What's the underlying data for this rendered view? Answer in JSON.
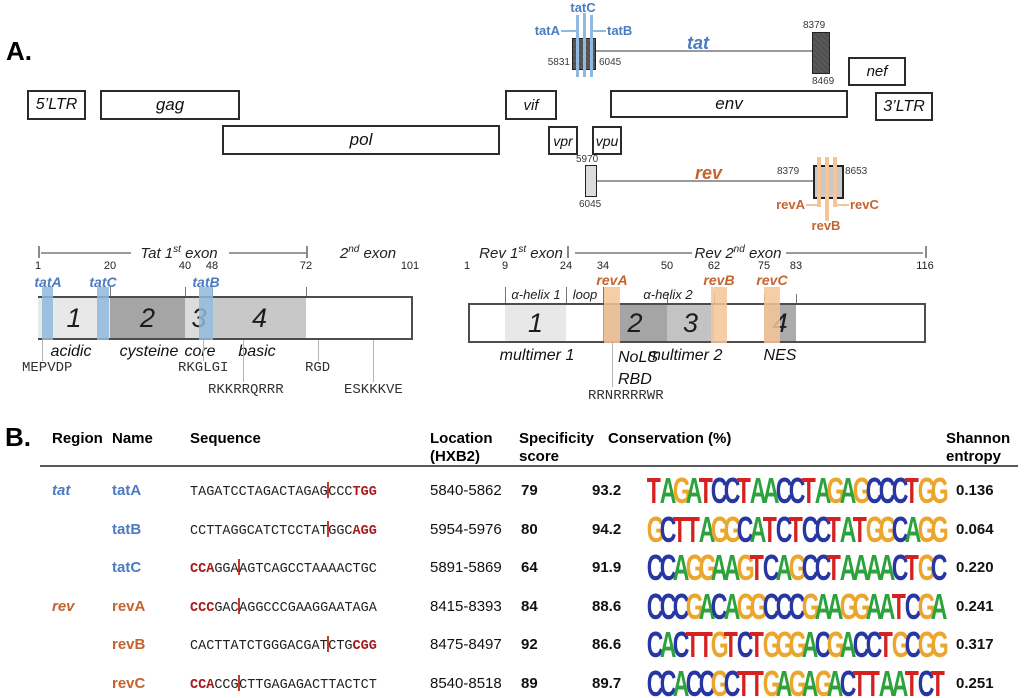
{
  "figure": {
    "panel_a_label": "A.",
    "panel_b_label": "B."
  },
  "colors": {
    "tat_blue": "#4b7cc0",
    "blue_band": "#8fb9dd",
    "rev_orange": "#c4632e",
    "orange_band": "#f5c497",
    "pam_red": "#a6191c",
    "cut_red": "#c53a2a",
    "logo_A": "#2ba23c",
    "logo_C": "#2736a0",
    "logo_G": "#eba62d",
    "logo_T": "#d52221"
  },
  "genome": {
    "genes": [
      {
        "id": "ltr5",
        "label": "5’LTR"
      },
      {
        "id": "gag",
        "label": "gag"
      },
      {
        "id": "pol",
        "label": "pol"
      },
      {
        "id": "vif",
        "label": "vif"
      },
      {
        "id": "vpr",
        "label": "vpr"
      },
      {
        "id": "vpu",
        "label": "vpu"
      },
      {
        "id": "env",
        "label": "env"
      },
      {
        "id": "nef",
        "label": "nef"
      },
      {
        "id": "ltr3",
        "label": "3’LTR"
      }
    ]
  },
  "tat_track": {
    "gene": "tat",
    "guides": [
      "tatA",
      "tatC",
      "tatB"
    ],
    "exon1_start": "5831",
    "exon1_end": "6045",
    "exon2_start": "8379",
    "exon2_end": "8469"
  },
  "rev_track": {
    "gene": "rev",
    "guides": [
      "revA",
      "revB",
      "revC"
    ],
    "exon1_start": "5970",
    "exon1_end": "6045",
    "exon2_start": "8379",
    "exon2_end": "8653"
  },
  "tat_domain": {
    "exon1_label": {
      "pre": "Tat 1",
      "sup": "st",
      "post": " exon"
    },
    "exon2_label": {
      "pre": "2",
      "sup": "nd",
      "post": " exon"
    },
    "ticks": [
      "1",
      "20",
      "40",
      "48",
      "72",
      "101"
    ],
    "guides": [
      "tatA",
      "tatC",
      "tatB"
    ],
    "segments": [
      "1",
      "2",
      "3",
      "4"
    ],
    "regions": [
      "acidic",
      "cysteine",
      "core",
      "basic"
    ],
    "motifs": [
      "MEPVDP",
      "RKGLGI",
      "RKKRRQRRR",
      "RGD",
      "ESKKKVE"
    ]
  },
  "rev_domain": {
    "exon1_label": {
      "pre": "Rev 1",
      "sup": "st",
      "post": " exon"
    },
    "exon2_label": {
      "pre": "Rev 2",
      "sup": "nd",
      "post": " exon"
    },
    "ticks": [
      "1",
      "9",
      "24",
      "34",
      "50",
      "62",
      "75",
      "83",
      "116"
    ],
    "guides": [
      "revA",
      "revB",
      "revC"
    ],
    "structure_labels": [
      "α-helix 1",
      "loop",
      "α-helix 2"
    ],
    "segments": [
      "1",
      "2",
      "3",
      "4"
    ],
    "regions": [
      "multimer 1",
      "NoLS",
      "RBD",
      "multimer 2",
      "NES"
    ],
    "motifs": [
      "RRNRRRRWR"
    ]
  },
  "table": {
    "headers": {
      "region": "Region",
      "name": "Name",
      "sequence": "Sequence",
      "location": [
        "Location",
        "(HXB2)"
      ],
      "specificity": [
        "Specificity",
        "score"
      ],
      "conservation": "Conservation (%)",
      "entropy": [
        "Shannon",
        "entropy"
      ]
    },
    "rows": [
      {
        "region": "tat",
        "group": "tat",
        "name": "tatA",
        "seq": [
          {
            "t": "TAGATCCTAGACTAGAG"
          },
          {
            "cut": true
          },
          {
            "t": "CCC"
          },
          {
            "t": "TGG",
            "pam": true
          }
        ],
        "location": "5840-5862",
        "specificity": "79",
        "conservation": "93.2",
        "logo": "TAGATCCTAACCTAGAGCCCTGG",
        "entropy": "0.136"
      },
      {
        "region": "",
        "group": "tat",
        "name": "tatB",
        "seq": [
          {
            "t": "CCTTAGGCATCTCCTAT"
          },
          {
            "cut": true
          },
          {
            "t": "GGC"
          },
          {
            "t": "AGG",
            "pam": true
          }
        ],
        "location": "5954-5976",
        "specificity": "80",
        "conservation": "94.2",
        "logo": "GCTTAGGCATCTCCTATGGCAGG",
        "entropy": "0.064"
      },
      {
        "region": "",
        "group": "tat",
        "name": "tatC",
        "seq": [
          {
            "t": "CCA",
            "pam": true
          },
          {
            "t": "GGA"
          },
          {
            "cut": true
          },
          {
            "t": "AGTCAGCCTAAAACTGC"
          }
        ],
        "location": "5891-5869",
        "specificity": "64",
        "conservation": "91.9",
        "logo": "CCAGGAAGTCAGCCTAAAACTGC",
        "entropy": "0.220"
      },
      {
        "region": "rev",
        "group": "rev",
        "name": "revA",
        "seq": [
          {
            "t": "CCC",
            "pam": true
          },
          {
            "t": "GAC"
          },
          {
            "cut": true
          },
          {
            "t": "AGGCCCGAAGGAATAGA"
          }
        ],
        "location": "8415-8393",
        "specificity": "84",
        "conservation": "88.6",
        "logo": "CCCGACAGGCCCGAAGGAATCGA",
        "entropy": "0.241"
      },
      {
        "region": "",
        "group": "rev",
        "name": "revB",
        "seq": [
          {
            "t": "CACTTATCTGGGACGAT"
          },
          {
            "cut": true
          },
          {
            "t": "CTG"
          },
          {
            "t": "CGG",
            "pam": true
          }
        ],
        "location": "8475-8497",
        "specificity": "92",
        "conservation": "86.6",
        "logo": "CACTTGTCTGGGACGACCTGCGG",
        "entropy": "0.317"
      },
      {
        "region": "",
        "group": "rev",
        "name": "revC",
        "seq": [
          {
            "t": "CCA",
            "pam": true
          },
          {
            "t": "CCG"
          },
          {
            "cut": true
          },
          {
            "t": "CTTGAGAGACTTACTCT"
          }
        ],
        "location": "8540-8518",
        "specificity": "89",
        "conservation": "89.7",
        "logo": "CCACCGCTTGAGAGACTTAATCT",
        "entropy": "0.251"
      }
    ]
  }
}
